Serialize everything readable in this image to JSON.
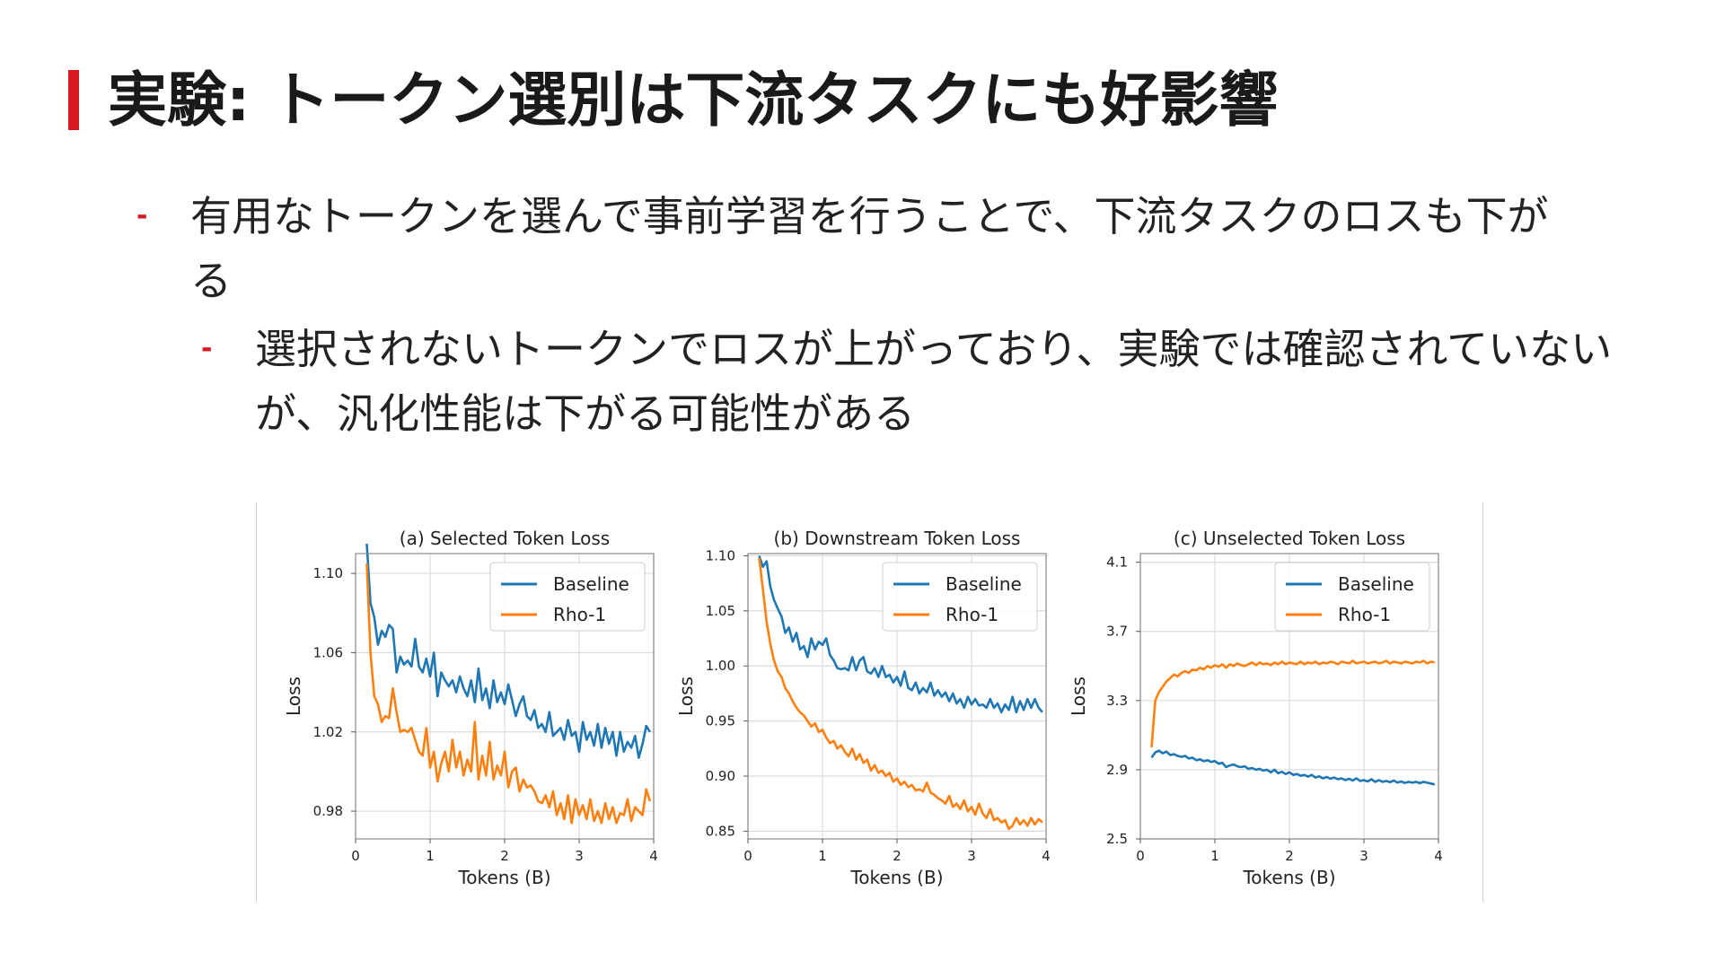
{
  "slide": {
    "title": "実験: トークン選別は下流タスクにも好影響",
    "accent_color": "#d71a21",
    "bullets": [
      {
        "level": 1,
        "marker": "-",
        "text": "有用なトークンを選んで事前学習を行うことで、下流タスクのロスも下がる"
      },
      {
        "level": 2,
        "marker": "-",
        "text": "選択されないトークンでロスが上がっており、実験では確認されていないが、汎化性能は下がる可能性がある"
      }
    ]
  },
  "chart_data": [
    {
      "type": "line",
      "title": "(a) Selected Token Loss",
      "xlabel": "Tokens (B)",
      "ylabel": "Loss",
      "xlim": [
        0,
        4
      ],
      "ylim": [
        0.966,
        1.11
      ],
      "xticks": [
        0,
        1,
        2,
        3,
        4
      ],
      "yticks": [
        0.98,
        1.02,
        1.06,
        1.1
      ],
      "ytick_decimals": 2,
      "grid": true,
      "legend": "top-right",
      "series": [
        {
          "name": "Baseline",
          "color": "#1f77b4",
          "x": [
            0.15,
            0.2,
            0.25,
            0.3,
            0.35,
            0.4,
            0.45,
            0.5,
            0.55,
            0.6,
            0.65,
            0.7,
            0.75,
            0.8,
            0.85,
            0.9,
            0.95,
            1.0,
            1.05,
            1.1,
            1.15,
            1.2,
            1.25,
            1.3,
            1.35,
            1.4,
            1.45,
            1.5,
            1.55,
            1.6,
            1.65,
            1.7,
            1.75,
            1.8,
            1.85,
            1.9,
            1.95,
            2.0,
            2.05,
            2.1,
            2.15,
            2.2,
            2.25,
            2.3,
            2.35,
            2.4,
            2.45,
            2.5,
            2.55,
            2.6,
            2.65,
            2.7,
            2.75,
            2.8,
            2.85,
            2.9,
            2.95,
            3.0,
            3.05,
            3.1,
            3.15,
            3.2,
            3.25,
            3.3,
            3.35,
            3.4,
            3.45,
            3.5,
            3.55,
            3.6,
            3.65,
            3.7,
            3.75,
            3.8,
            3.85,
            3.9,
            3.95
          ],
          "y": [
            1.115,
            1.085,
            1.078,
            1.064,
            1.071,
            1.068,
            1.074,
            1.072,
            1.05,
            1.058,
            1.054,
            1.056,
            1.053,
            1.067,
            1.053,
            1.05,
            1.057,
            1.048,
            1.06,
            1.038,
            1.05,
            1.046,
            1.043,
            1.046,
            1.04,
            1.048,
            1.042,
            1.038,
            1.046,
            1.035,
            1.052,
            1.036,
            1.042,
            1.032,
            1.046,
            1.035,
            1.04,
            1.034,
            1.044,
            1.036,
            1.028,
            1.034,
            1.038,
            1.028,
            1.026,
            1.031,
            1.022,
            1.024,
            1.02,
            1.03,
            1.018,
            1.02,
            1.022,
            1.016,
            1.026,
            1.018,
            1.02,
            1.01,
            1.025,
            1.016,
            1.02,
            1.013,
            1.024,
            1.012,
            1.022,
            1.014,
            1.02,
            1.008,
            1.02,
            1.01,
            1.015,
            1.012,
            1.018,
            1.007,
            1.014,
            1.023,
            1.02
          ]
        },
        {
          "name": "Rho-1",
          "color": "#ff7f0e",
          "x": [
            0.15,
            0.2,
            0.25,
            0.3,
            0.35,
            0.4,
            0.45,
            0.5,
            0.55,
            0.6,
            0.65,
            0.7,
            0.75,
            0.8,
            0.85,
            0.9,
            0.95,
            1.0,
            1.05,
            1.1,
            1.15,
            1.2,
            1.25,
            1.3,
            1.35,
            1.4,
            1.45,
            1.5,
            1.55,
            1.6,
            1.65,
            1.7,
            1.75,
            1.8,
            1.85,
            1.9,
            1.95,
            2.0,
            2.05,
            2.1,
            2.15,
            2.2,
            2.25,
            2.3,
            2.35,
            2.4,
            2.45,
            2.5,
            2.55,
            2.6,
            2.65,
            2.7,
            2.75,
            2.8,
            2.85,
            2.9,
            2.95,
            3.0,
            3.05,
            3.1,
            3.15,
            3.2,
            3.25,
            3.3,
            3.35,
            3.4,
            3.45,
            3.5,
            3.55,
            3.6,
            3.65,
            3.7,
            3.75,
            3.8,
            3.85,
            3.9,
            3.95
          ],
          "y": [
            1.105,
            1.06,
            1.038,
            1.034,
            1.025,
            1.028,
            1.027,
            1.042,
            1.03,
            1.02,
            1.021,
            1.02,
            1.022,
            1.016,
            1.01,
            1.008,
            1.022,
            1.002,
            1.01,
            0.995,
            1.004,
            1.01,
            1.0,
            1.016,
            1.002,
            1.01,
            0.998,
            1.006,
            1.0,
            1.025,
            0.996,
            1.008,
            0.998,
            1.015,
            0.996,
            1.003,
            0.998,
            1.01,
            0.992,
            1.0,
            1.002,
            0.99,
            0.996,
            0.992,
            0.993,
            0.99,
            0.985,
            0.984,
            0.988,
            0.982,
            0.99,
            0.978,
            0.984,
            0.976,
            0.988,
            0.974,
            0.986,
            0.978,
            0.983,
            0.976,
            0.986,
            0.975,
            0.98,
            0.974,
            0.984,
            0.976,
            0.982,
            0.974,
            0.979,
            0.978,
            0.986,
            0.975,
            0.982,
            0.98,
            0.978,
            0.991,
            0.985
          ]
        }
      ]
    },
    {
      "type": "line",
      "title": "(b) Downstream Token Loss",
      "xlabel": "Tokens (B)",
      "ylabel": "Loss",
      "xlim": [
        0,
        4
      ],
      "ylim": [
        0.843,
        1.102
      ],
      "xticks": [
        0,
        1,
        2,
        3,
        4
      ],
      "yticks": [
        0.85,
        0.9,
        0.95,
        1.0,
        1.05,
        1.1
      ],
      "ytick_decimals": 2,
      "grid": true,
      "legend": "top-right",
      "series": [
        {
          "name": "Baseline",
          "color": "#1f77b4",
          "x": [
            0.15,
            0.2,
            0.25,
            0.3,
            0.35,
            0.4,
            0.45,
            0.5,
            0.55,
            0.6,
            0.65,
            0.7,
            0.75,
            0.8,
            0.85,
            0.9,
            0.95,
            1.0,
            1.05,
            1.1,
            1.15,
            1.2,
            1.25,
            1.3,
            1.35,
            1.4,
            1.45,
            1.5,
            1.55,
            1.6,
            1.65,
            1.7,
            1.75,
            1.8,
            1.85,
            1.9,
            1.95,
            2.0,
            2.05,
            2.1,
            2.15,
            2.2,
            2.25,
            2.3,
            2.35,
            2.4,
            2.45,
            2.5,
            2.55,
            2.6,
            2.65,
            2.7,
            2.75,
            2.8,
            2.85,
            2.9,
            2.95,
            3.0,
            3.05,
            3.1,
            3.15,
            3.2,
            3.25,
            3.3,
            3.35,
            3.4,
            3.45,
            3.5,
            3.55,
            3.6,
            3.65,
            3.7,
            3.75,
            3.8,
            3.85,
            3.9,
            3.95
          ],
          "y": [
            1.1,
            1.09,
            1.095,
            1.072,
            1.06,
            1.052,
            1.045,
            1.03,
            1.035,
            1.022,
            1.03,
            1.015,
            1.018,
            1.008,
            1.025,
            1.015,
            1.022,
            1.019,
            1.025,
            1.01,
            1.005,
            0.998,
            0.997,
            0.998,
            0.996,
            1.008,
            0.996,
            1.005,
            1.008,
            0.995,
            0.993,
            0.998,
            0.99,
            1.0,
            0.99,
            0.992,
            0.985,
            0.99,
            0.982,
            0.995,
            0.98,
            0.978,
            0.985,
            0.975,
            0.98,
            0.976,
            0.985,
            0.973,
            0.978,
            0.972,
            0.976,
            0.968,
            0.975,
            0.966,
            0.97,
            0.962,
            0.972,
            0.965,
            0.97,
            0.964,
            0.965,
            0.962,
            0.97,
            0.962,
            0.966,
            0.958,
            0.965,
            0.96,
            0.972,
            0.958,
            0.968,
            0.96,
            0.97,
            0.962,
            0.97,
            0.962,
            0.958
          ]
        },
        {
          "name": "Rho-1",
          "color": "#ff7f0e",
          "x": [
            0.15,
            0.2,
            0.25,
            0.3,
            0.35,
            0.4,
            0.45,
            0.5,
            0.55,
            0.6,
            0.65,
            0.7,
            0.75,
            0.8,
            0.85,
            0.9,
            0.95,
            1.0,
            1.05,
            1.1,
            1.15,
            1.2,
            1.25,
            1.3,
            1.35,
            1.4,
            1.45,
            1.5,
            1.55,
            1.6,
            1.65,
            1.7,
            1.75,
            1.8,
            1.85,
            1.9,
            1.95,
            2.0,
            2.05,
            2.1,
            2.15,
            2.2,
            2.25,
            2.3,
            2.35,
            2.4,
            2.45,
            2.5,
            2.55,
            2.6,
            2.65,
            2.7,
            2.75,
            2.8,
            2.85,
            2.9,
            2.95,
            3.0,
            3.05,
            3.1,
            3.15,
            3.2,
            3.25,
            3.3,
            3.35,
            3.4,
            3.45,
            3.5,
            3.55,
            3.6,
            3.65,
            3.7,
            3.75,
            3.8,
            3.85,
            3.9,
            3.95
          ],
          "y": [
            1.098,
            1.07,
            1.04,
            1.02,
            1.005,
            0.995,
            0.99,
            0.98,
            0.975,
            0.968,
            0.962,
            0.958,
            0.955,
            0.95,
            0.945,
            0.948,
            0.94,
            0.942,
            0.935,
            0.93,
            0.932,
            0.925,
            0.928,
            0.922,
            0.918,
            0.925,
            0.915,
            0.92,
            0.912,
            0.915,
            0.905,
            0.91,
            0.903,
            0.905,
            0.9,
            0.903,
            0.895,
            0.898,
            0.892,
            0.895,
            0.89,
            0.892,
            0.887,
            0.888,
            0.886,
            0.894,
            0.885,
            0.883,
            0.88,
            0.878,
            0.875,
            0.882,
            0.872,
            0.875,
            0.87,
            0.878,
            0.868,
            0.872,
            0.865,
            0.875,
            0.866,
            0.862,
            0.87,
            0.86,
            0.862,
            0.858,
            0.86,
            0.852,
            0.855,
            0.862,
            0.856,
            0.86,
            0.855,
            0.862,
            0.856,
            0.861,
            0.858
          ]
        }
      ]
    },
    {
      "type": "line",
      "title": "(c) Unselected Token Loss",
      "xlabel": "Tokens (B)",
      "ylabel": "Loss",
      "xlim": [
        0,
        4
      ],
      "ylim": [
        2.5,
        4.15
      ],
      "xticks": [
        0,
        1,
        2,
        3,
        4
      ],
      "yticks": [
        2.5,
        2.9,
        3.3,
        3.7,
        4.1
      ],
      "ytick_decimals": 1,
      "grid": true,
      "legend": "top-right",
      "series": [
        {
          "name": "Baseline",
          "color": "#1f77b4",
          "x": [
            0.15,
            0.2,
            0.25,
            0.3,
            0.35,
            0.4,
            0.45,
            0.5,
            0.55,
            0.6,
            0.65,
            0.7,
            0.75,
            0.8,
            0.85,
            0.9,
            0.95,
            1.0,
            1.05,
            1.1,
            1.15,
            1.2,
            1.25,
            1.3,
            1.35,
            1.4,
            1.45,
            1.5,
            1.55,
            1.6,
            1.65,
            1.7,
            1.75,
            1.8,
            1.85,
            1.9,
            1.95,
            2.0,
            2.05,
            2.1,
            2.15,
            2.2,
            2.25,
            2.3,
            2.35,
            2.4,
            2.45,
            2.5,
            2.55,
            2.6,
            2.65,
            2.7,
            2.75,
            2.8,
            2.85,
            2.9,
            2.95,
            3.0,
            3.05,
            3.1,
            3.15,
            3.2,
            3.25,
            3.3,
            3.35,
            3.4,
            3.45,
            3.5,
            3.55,
            3.6,
            3.65,
            3.7,
            3.75,
            3.8,
            3.85,
            3.9,
            3.95
          ],
          "y": [
            2.97,
            3.0,
            3.01,
            2.995,
            3.005,
            2.985,
            2.99,
            2.98,
            2.975,
            2.98,
            2.965,
            2.97,
            2.955,
            2.96,
            2.95,
            2.955,
            2.945,
            2.95,
            2.935,
            2.94,
            2.915,
            2.925,
            2.93,
            2.92,
            2.915,
            2.92,
            2.905,
            2.91,
            2.9,
            2.905,
            2.895,
            2.9,
            2.885,
            2.9,
            2.88,
            2.888,
            2.875,
            2.885,
            2.87,
            2.875,
            2.865,
            2.87,
            2.86,
            2.87,
            2.855,
            2.862,
            2.85,
            2.858,
            2.848,
            2.855,
            2.845,
            2.85,
            2.84,
            2.848,
            2.838,
            2.85,
            2.835,
            2.84,
            2.832,
            2.845,
            2.83,
            2.84,
            2.83,
            2.835,
            2.828,
            2.838,
            2.826,
            2.832,
            2.824,
            2.83,
            2.825,
            2.83,
            2.822,
            2.83,
            2.825,
            2.82,
            2.815
          ]
        },
        {
          "name": "Rho-1",
          "color": "#ff7f0e",
          "x": [
            0.15,
            0.2,
            0.25,
            0.3,
            0.35,
            0.4,
            0.45,
            0.5,
            0.55,
            0.6,
            0.65,
            0.7,
            0.75,
            0.8,
            0.85,
            0.9,
            0.95,
            1.0,
            1.05,
            1.1,
            1.15,
            1.2,
            1.25,
            1.3,
            1.35,
            1.4,
            1.45,
            1.5,
            1.55,
            1.6,
            1.65,
            1.7,
            1.75,
            1.8,
            1.85,
            1.9,
            1.95,
            2.0,
            2.05,
            2.1,
            2.15,
            2.2,
            2.25,
            2.3,
            2.35,
            2.4,
            2.45,
            2.5,
            2.55,
            2.6,
            2.65,
            2.7,
            2.75,
            2.8,
            2.85,
            2.9,
            2.95,
            3.0,
            3.05,
            3.1,
            3.15,
            3.2,
            3.25,
            3.3,
            3.35,
            3.4,
            3.45,
            3.5,
            3.55,
            3.6,
            3.65,
            3.7,
            3.75,
            3.8,
            3.85,
            3.9,
            3.95
          ],
          "y": [
            3.03,
            3.3,
            3.35,
            3.38,
            3.41,
            3.43,
            3.45,
            3.44,
            3.46,
            3.47,
            3.46,
            3.48,
            3.475,
            3.49,
            3.48,
            3.5,
            3.49,
            3.505,
            3.495,
            3.51,
            3.49,
            3.51,
            3.5,
            3.515,
            3.505,
            3.5,
            3.51,
            3.52,
            3.505,
            3.52,
            3.51,
            3.515,
            3.505,
            3.52,
            3.51,
            3.525,
            3.51,
            3.52,
            3.515,
            3.51,
            3.525,
            3.51,
            3.52,
            3.515,
            3.525,
            3.51,
            3.52,
            3.515,
            3.525,
            3.52,
            3.51,
            3.525,
            3.52,
            3.515,
            3.53,
            3.515,
            3.52,
            3.525,
            3.515,
            3.52,
            3.525,
            3.515,
            3.52,
            3.53,
            3.515,
            3.525,
            3.52,
            3.515,
            3.525,
            3.52,
            3.515,
            3.525,
            3.52,
            3.53,
            3.515,
            3.525,
            3.52
          ]
        }
      ]
    }
  ]
}
